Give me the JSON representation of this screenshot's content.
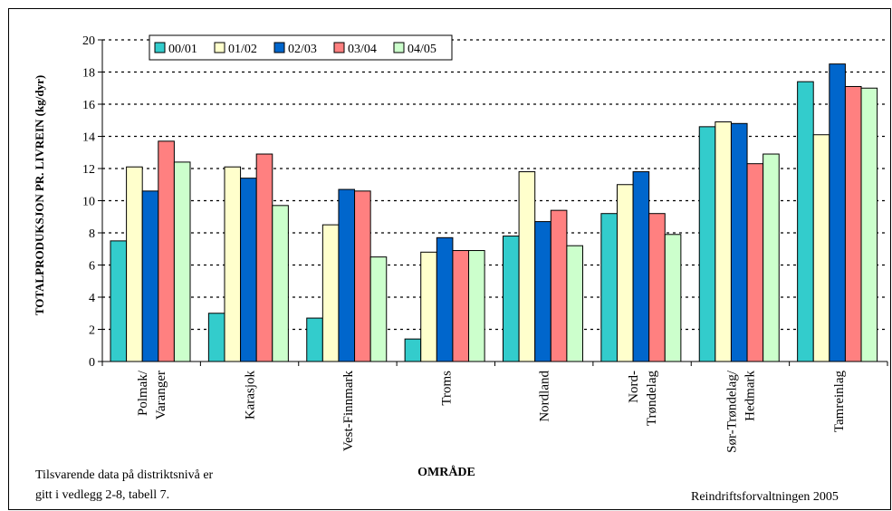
{
  "chart_data": {
    "type": "bar",
    "ylabel": "TOTALPRODUKSJON PR. LIVREIN  (kg/dyr)",
    "xlabel": "OMRÅDE",
    "ylim": [
      0,
      20
    ],
    "yticks": [
      0,
      2,
      4,
      6,
      8,
      10,
      12,
      14,
      16,
      18,
      20
    ],
    "grid": true,
    "legend_position": "top",
    "categories": [
      [
        "Polmak/",
        "Varanger"
      ],
      [
        "Karasjok"
      ],
      [
        "Vest-Finnmark"
      ],
      [
        "Troms"
      ],
      [
        "Nordland"
      ],
      [
        "Nord-",
        "Trøndelag"
      ],
      [
        "Sør-Trøndelag/",
        "Hedmark"
      ],
      [
        "Tamreinlag"
      ]
    ],
    "series": [
      {
        "name": "00/01",
        "color": "#33cccc",
        "values": [
          7.5,
          3.0,
          2.7,
          1.4,
          7.8,
          9.2,
          14.6,
          17.4
        ]
      },
      {
        "name": "01/02",
        "color": "#ffffcc",
        "values": [
          12.1,
          12.1,
          8.5,
          6.8,
          11.8,
          11.0,
          14.9,
          14.1
        ]
      },
      {
        "name": "02/03",
        "color": "#0066cc",
        "values": [
          10.6,
          11.4,
          10.7,
          7.7,
          8.7,
          11.8,
          14.8,
          18.5
        ]
      },
      {
        "name": "03/04",
        "color": "#ff8080",
        "values": [
          13.7,
          12.9,
          10.6,
          6.9,
          9.4,
          9.2,
          12.3,
          17.1
        ]
      },
      {
        "name": "04/05",
        "color": "#ccffcc",
        "values": [
          12.4,
          9.7,
          6.5,
          6.9,
          7.2,
          7.9,
          12.9,
          17.0
        ]
      }
    ]
  },
  "notes": {
    "footnote_line1": "Tilsvarende data på distriktsnivå er",
    "footnote_line2": "gitt i vedlegg 2-8, tabell 7.",
    "source": "Reindriftsforvaltningen 2005"
  }
}
